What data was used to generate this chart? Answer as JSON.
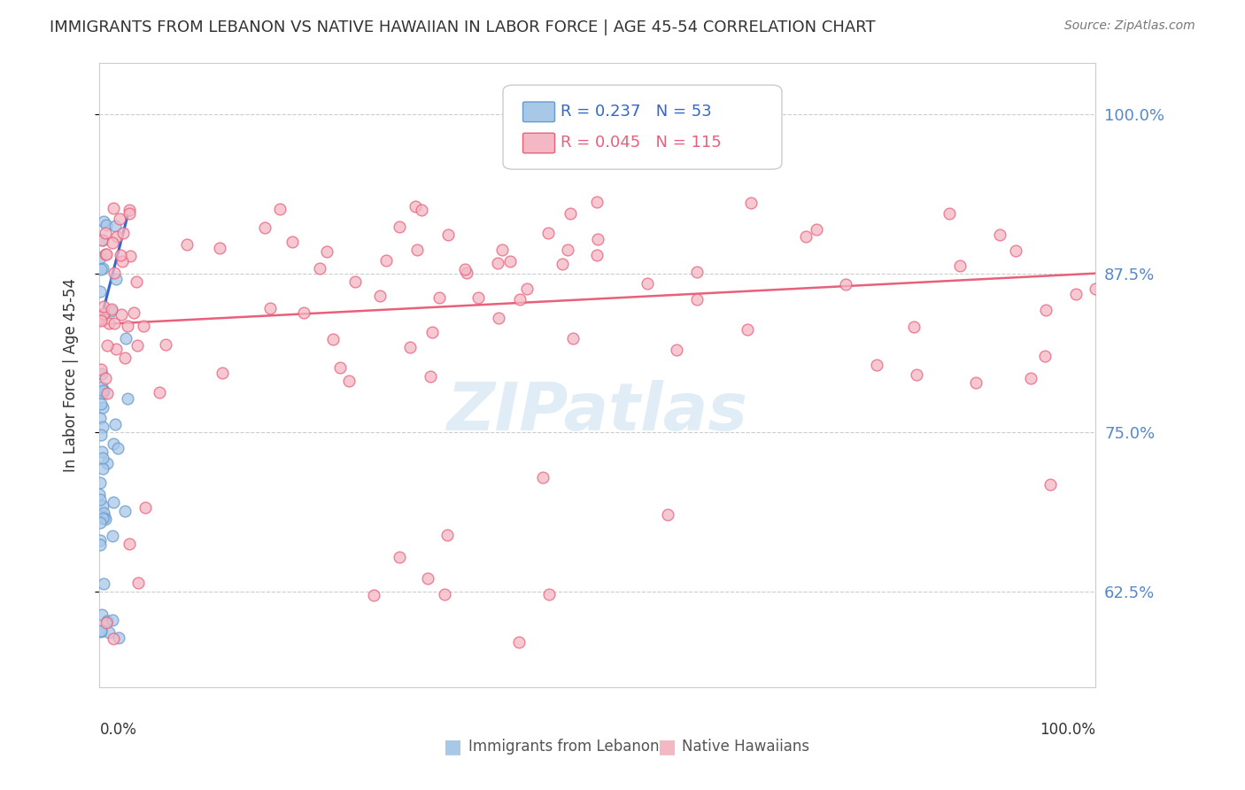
{
  "title": "IMMIGRANTS FROM LEBANON VS NATIVE HAWAIIAN IN LABOR FORCE | AGE 45-54 CORRELATION CHART",
  "source": "Source: ZipAtlas.com",
  "ylabel": "In Labor Force | Age 45-54",
  "ytick_values": [
    1.0,
    0.875,
    0.75,
    0.625
  ],
  "legend_entries": [
    {
      "label": "Immigrants from Lebanon",
      "color": "#a8c8e8",
      "R": 0.237,
      "N": 53
    },
    {
      "label": "Native Hawaiians",
      "color": "#f4a0b0",
      "R": 0.045,
      "N": 115
    }
  ],
  "blue_color": "#a8c8e8",
  "pink_color": "#f4b8c4",
  "blue_edge": "#6699cc",
  "pink_edge": "#e8607a",
  "trend_blue": "#3366cc",
  "trend_pink": "#e8607a",
  "background": "#ffffff",
  "grid_color": "#cccccc",
  "title_color": "#333333",
  "right_tick_color": "#5588cc",
  "watermark_color": "#c8ddf0"
}
